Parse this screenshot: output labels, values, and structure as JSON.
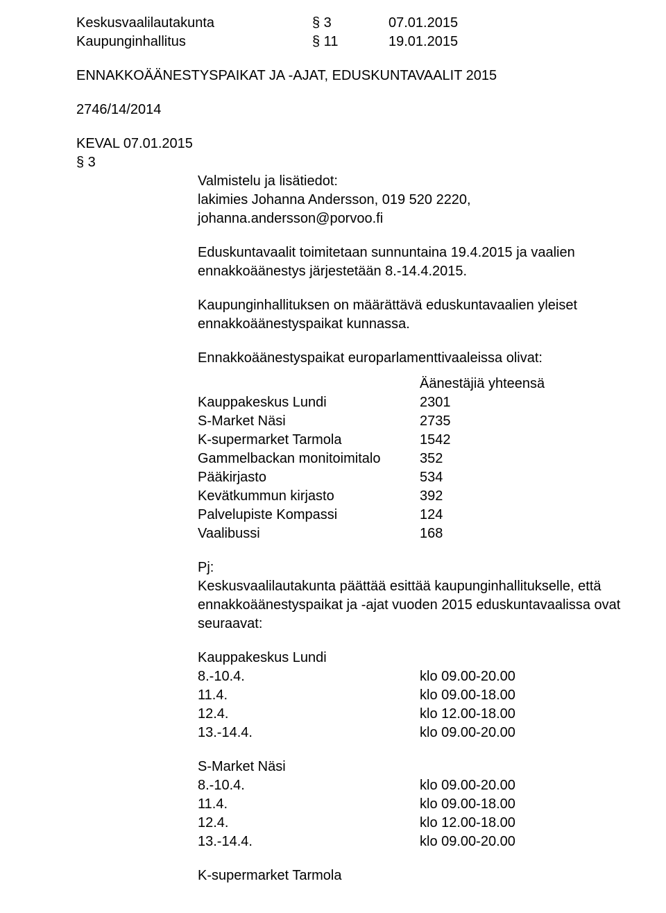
{
  "header": {
    "rows": [
      {
        "org": "Keskusvaalilautakunta",
        "section": "§ 3",
        "date": "07.01.2015"
      },
      {
        "org": "Kaupunginhallitus",
        "section": "§ 11",
        "date": "19.01.2015"
      }
    ]
  },
  "title": "ENNAKKOÄÄNESTYSPAIKAT JA -AJAT, EDUSKUNTAVAALIT 2015",
  "case_number": "2746/14/2014",
  "keval": {
    "label": "KEVAL 07.01.2015 § 3",
    "prep_line": "Valmistelu ja lisätiedot:",
    "contact_line": "lakimies Johanna Andersson, 019 520 2220, johanna.andersson@porvoo.fi"
  },
  "paragraphs": {
    "p1": "Eduskuntavaalit toimitetaan sunnuntaina 19.4.2015 ja vaalien ennakkoäänestys järjestetään 8.-14.4.2015.",
    "p2": "Kaupunginhallituksen on määrättävä eduskuntavaalien yleiset ennakkoäänestyspaikat kunnassa.",
    "p3": "Ennakkoäänestyspaikat europarlamenttivaaleissa olivat:"
  },
  "voters_table": {
    "header": "Äänestäjiä yhteensä",
    "rows": [
      {
        "name": "Kauppakeskus Lundi",
        "count": "2301"
      },
      {
        "name": "S-Market Näsi",
        "count": "2735"
      },
      {
        "name": "K-supermarket Tarmola",
        "count": "1542"
      },
      {
        "name": "Gammelbackan monitoimitalo",
        "count": "352"
      },
      {
        "name": "Pääkirjasto",
        "count": "534"
      },
      {
        "name": "Kevätkummun kirjasto",
        "count": "392"
      },
      {
        "name": "Palvelupiste Kompassi",
        "count": "124"
      },
      {
        "name": "Vaalibussi",
        "count": "168"
      }
    ]
  },
  "pj": {
    "label": "Pj:",
    "text": "Keskusvaalilautakunta päättää esittää kaupunginhallitukselle, että ennakkoäänestyspaikat ja -ajat vuoden 2015 eduskuntavaalissa ovat seuraavat:"
  },
  "schedules": [
    {
      "title": "Kauppakeskus Lundi",
      "rows": [
        {
          "dates": "8.-10.4.",
          "time": "klo 09.00-20.00"
        },
        {
          "dates": "11.4.",
          "time": "klo 09.00-18.00"
        },
        {
          "dates": "12.4.",
          "time": "klo 12.00-18.00"
        },
        {
          "dates": "13.-14.4.",
          "time": "klo 09.00-20.00"
        }
      ]
    },
    {
      "title": "S-Market Näsi",
      "rows": [
        {
          "dates": "8.-10.4.",
          "time": "klo 09.00-20.00"
        },
        {
          "dates": "11.4.",
          "time": "klo 09.00-18.00"
        },
        {
          "dates": "12.4.",
          "time": "klo 12.00-18.00"
        },
        {
          "dates": "13.-14.4.",
          "time": "klo 09.00-20.00"
        }
      ]
    },
    {
      "title": "K-supermarket Tarmola",
      "rows": []
    }
  ]
}
